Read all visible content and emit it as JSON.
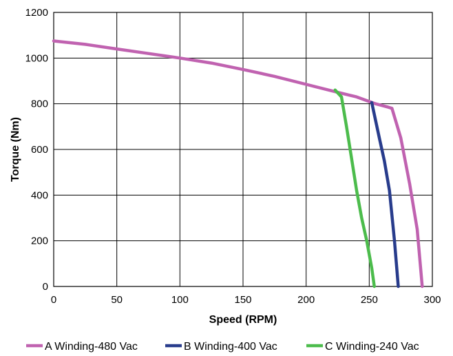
{
  "chart_data": {
    "type": "line",
    "title": "",
    "xlabel": "Speed (RPM)",
    "ylabel": "Torque (Nm)",
    "xlim": [
      0,
      300
    ],
    "ylim": [
      0,
      1200
    ],
    "xticks": [
      0,
      50,
      100,
      150,
      200,
      250,
      300
    ],
    "yticks": [
      0,
      200,
      400,
      600,
      800,
      1000,
      1200
    ],
    "grid": true,
    "legend_position": "bottom",
    "series": [
      {
        "name": "A Winding-480 Vac",
        "color": "#c062b0",
        "x": [
          0,
          25,
          50,
          75,
          100,
          125,
          150,
          175,
          200,
          225,
          240,
          255,
          265,
          268,
          275,
          282,
          288,
          292
        ],
        "y": [
          1075,
          1060,
          1040,
          1020,
          1000,
          978,
          950,
          920,
          885,
          850,
          830,
          800,
          785,
          780,
          650,
          450,
          250,
          0
        ]
      },
      {
        "name": "B Winding-400 Vac",
        "color": "#283c8c",
        "x": [
          252,
          258,
          262,
          266,
          270,
          273
        ],
        "y": [
          805,
          650,
          550,
          420,
          200,
          0
        ]
      },
      {
        "name": "C Winding-240 Vac",
        "color": "#4cbc4c",
        "x": [
          223,
          228,
          232,
          236,
          240,
          244,
          248,
          252,
          254
        ],
        "y": [
          860,
          830,
          700,
          560,
          420,
          300,
          200,
          80,
          0
        ]
      }
    ]
  }
}
